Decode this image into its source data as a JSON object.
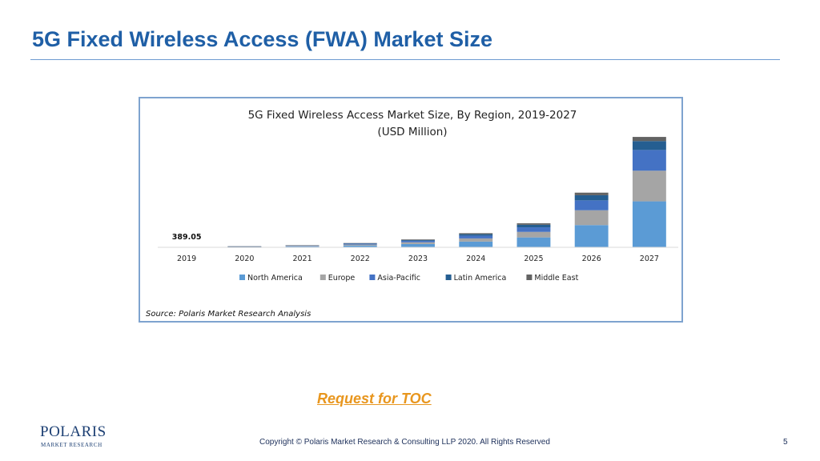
{
  "slide": {
    "title": "5G Fixed Wireless Access (FWA) Market Size",
    "toc_link": "Request for TOC",
    "copyright": "Copyright © Polaris Market Research & Consulting LLP 2020. All Rights Reserved",
    "page_number": "5",
    "logo": {
      "word": "POLARIS",
      "sub": "MARKET RESEARCH"
    }
  },
  "chart_data": {
    "type": "bar",
    "stacked": true,
    "title": "5G Fixed Wireless Access Market Size, By Region, 2019-2027",
    "subtitle": "(USD Million)",
    "source": "Source: Polaris Market Research Analysis",
    "categories": [
      "2019",
      "2020",
      "2021",
      "2022",
      "2023",
      "2024",
      "2025",
      "2026",
      "2027"
    ],
    "series": [
      {
        "name": "North America",
        "color": "#5b9bd5",
        "values": [
          180,
          450,
          900,
          1800,
          3300,
          5800,
          10000,
          22500,
          46500
        ]
      },
      {
        "name": "Europe",
        "color": "#a5a5a5",
        "values": [
          90,
          230,
          500,
          1000,
          1800,
          3200,
          5600,
          15000,
          31000
        ]
      },
      {
        "name": "Asia-Pacific",
        "color": "#4472c4",
        "values": [
          70,
          180,
          400,
          800,
          1500,
          2800,
          4600,
          10000,
          21000
        ]
      },
      {
        "name": "Latin America",
        "color": "#255e91",
        "values": [
          30,
          70,
          170,
          400,
          800,
          1500,
          2600,
          5200,
          9000
        ]
      },
      {
        "name": "Middle East",
        "color": "#636363",
        "values": [
          19.05,
          50,
          120,
          300,
          600,
          1000,
          1500,
          2600,
          4200
        ]
      }
    ],
    "data_labels": [
      {
        "category": "2019",
        "text": "389.05"
      }
    ],
    "ylim": [
      0,
      115000
    ],
    "legend": "bottom",
    "grid": false
  }
}
